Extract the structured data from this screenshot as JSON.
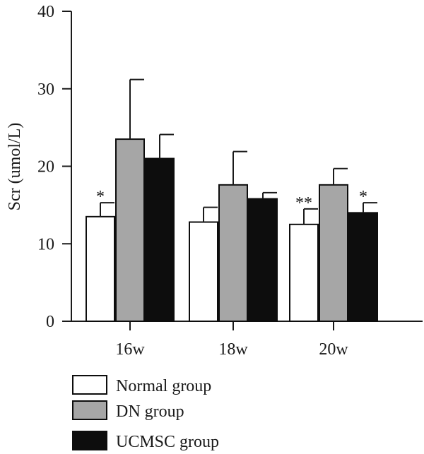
{
  "chart_data": {
    "type": "bar",
    "title": "",
    "xlabel": "",
    "ylabel": "Scr (umol/L)",
    "ylim": [
      0,
      40
    ],
    "yticks": [
      0,
      10,
      20,
      30,
      40
    ],
    "categories": [
      "16w",
      "18w",
      "20w"
    ],
    "grid": false,
    "legend_position": "bottom",
    "series": [
      {
        "name": "Normal group",
        "color": "#ffffff",
        "values": [
          13.5,
          12.8,
          12.5
        ],
        "errors": [
          1.8,
          1.9,
          2.0
        ],
        "significance": [
          "*",
          "",
          "**"
        ]
      },
      {
        "name": "DN group",
        "color": "#a6a6a6",
        "values": [
          23.5,
          17.6,
          17.6
        ],
        "errors": [
          7.7,
          4.3,
          2.1
        ],
        "significance": [
          "",
          "",
          ""
        ]
      },
      {
        "name": "UCMSC group",
        "color": "#0d0d0d",
        "values": [
          21.0,
          15.8,
          14.0
        ],
        "errors": [
          3.1,
          0.8,
          1.3
        ],
        "significance": [
          "",
          "",
          "*"
        ]
      }
    ]
  }
}
